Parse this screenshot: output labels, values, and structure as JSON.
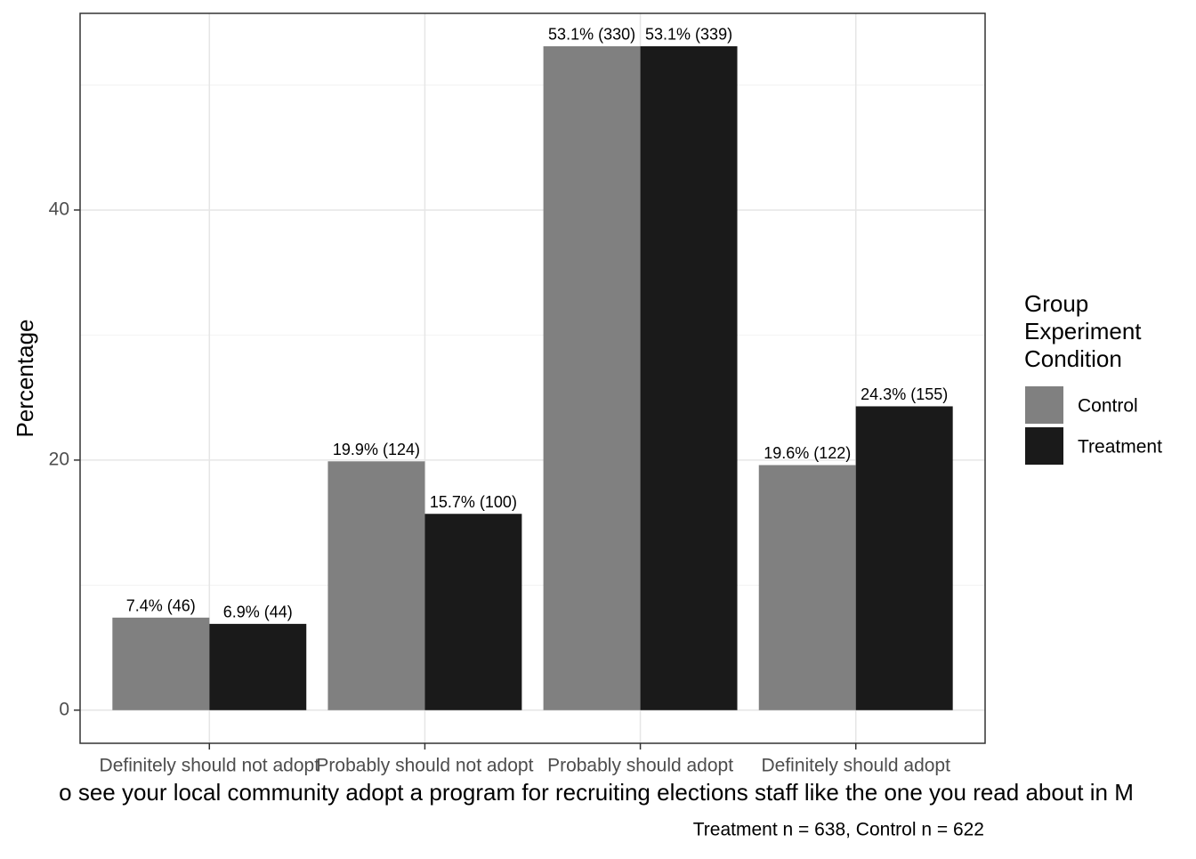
{
  "chart_data": {
    "type": "bar",
    "categories": [
      "Definitely should not adopt",
      "Probably should not adopt",
      "Probably should adopt",
      "Definitely should adopt"
    ],
    "series": [
      {
        "name": "Control",
        "color": "#808080",
        "values": [
          7.4,
          19.9,
          53.1,
          19.6
        ],
        "value_labels": [
          "7.4% (46)",
          "19.9% (124)",
          "53.1% (330)",
          "19.6% (122)"
        ]
      },
      {
        "name": "Treatment",
        "color": "#1a1a1a",
        "values": [
          6.9,
          15.7,
          53.1,
          24.3
        ],
        "value_labels": [
          "6.9% (44)",
          "15.7% (100)",
          "53.1% (339)",
          "24.3% (155)"
        ]
      }
    ],
    "ylabel": "Percentage",
    "xlabel": "o see your local community adopt a program for recruiting elections staff like the one you read about in M",
    "caption": "Treatment n = 638, Control n = 622",
    "legend_title": [
      "Group",
      "Experiment",
      "Condition"
    ],
    "legend": "right",
    "ylim": [
      -2.65,
      55.73
    ],
    "yticks": [
      0,
      20,
      40
    ],
    "minor_yticks": [
      10,
      30,
      50
    ],
    "grid": true
  }
}
